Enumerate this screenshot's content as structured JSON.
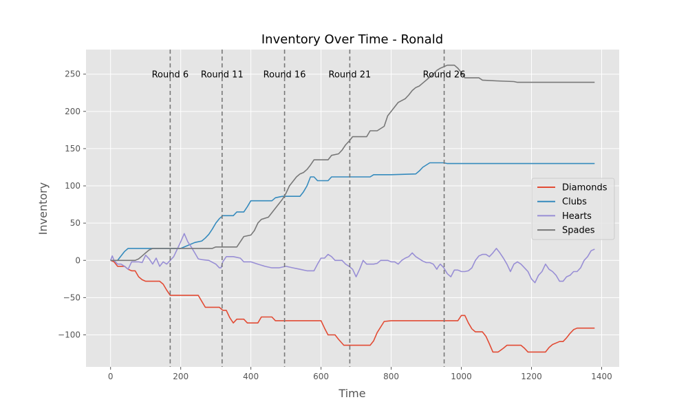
{
  "chart_data": {
    "type": "line",
    "title": "Inventory Over Time - Ronald",
    "xlabel": "Time",
    "ylabel": "Inventory",
    "xlim": [
      -70,
      1450
    ],
    "ylim": [
      -143,
      283
    ],
    "xticks": [
      0,
      200,
      400,
      600,
      800,
      1000,
      1200,
      1400
    ],
    "yticks": [
      -100,
      -50,
      0,
      50,
      100,
      150,
      200,
      250
    ],
    "grid": true,
    "legend_position": "center-right",
    "vlines": [
      {
        "x": 170,
        "label": "Round 6"
      },
      {
        "x": 318,
        "label": "Round 11"
      },
      {
        "x": 496,
        "label": "Round 16"
      },
      {
        "x": 682,
        "label": "Round 21"
      },
      {
        "x": 951,
        "label": "Round 26"
      }
    ],
    "series": [
      {
        "name": "Diamonds",
        "color": "#e24a33",
        "points": [
          [
            0,
            0
          ],
          [
            10,
            -2
          ],
          [
            20,
            -8
          ],
          [
            40,
            -8
          ],
          [
            50,
            -12
          ],
          [
            60,
            -14
          ],
          [
            70,
            -14
          ],
          [
            80,
            -22
          ],
          [
            90,
            -26
          ],
          [
            100,
            -28
          ],
          [
            140,
            -28
          ],
          [
            150,
            -32
          ],
          [
            160,
            -40
          ],
          [
            170,
            -47
          ],
          [
            250,
            -47
          ],
          [
            260,
            -55
          ],
          [
            270,
            -63
          ],
          [
            310,
            -63
          ],
          [
            320,
            -67
          ],
          [
            330,
            -67
          ],
          [
            340,
            -77
          ],
          [
            350,
            -84
          ],
          [
            360,
            -79
          ],
          [
            380,
            -79
          ],
          [
            390,
            -84
          ],
          [
            420,
            -84
          ],
          [
            430,
            -76
          ],
          [
            460,
            -76
          ],
          [
            470,
            -81
          ],
          [
            500,
            -81
          ],
          [
            600,
            -81
          ],
          [
            610,
            -91
          ],
          [
            620,
            -100
          ],
          [
            640,
            -100
          ],
          [
            650,
            -106
          ],
          [
            665,
            -114
          ],
          [
            740,
            -114
          ],
          [
            750,
            -108
          ],
          [
            760,
            -97
          ],
          [
            780,
            -82
          ],
          [
            800,
            -81
          ],
          [
            990,
            -81
          ],
          [
            1000,
            -74
          ],
          [
            1010,
            -74
          ],
          [
            1020,
            -84
          ],
          [
            1030,
            -92
          ],
          [
            1040,
            -96
          ],
          [
            1060,
            -96
          ],
          [
            1070,
            -102
          ],
          [
            1080,
            -112
          ],
          [
            1090,
            -123
          ],
          [
            1105,
            -123
          ],
          [
            1120,
            -118
          ],
          [
            1130,
            -114
          ],
          [
            1170,
            -114
          ],
          [
            1180,
            -118
          ],
          [
            1190,
            -123
          ],
          [
            1240,
            -123
          ],
          [
            1250,
            -117
          ],
          [
            1260,
            -113
          ],
          [
            1280,
            -109
          ],
          [
            1290,
            -109
          ],
          [
            1300,
            -104
          ],
          [
            1310,
            -98
          ],
          [
            1320,
            -93
          ],
          [
            1330,
            -91
          ],
          [
            1380,
            -91
          ]
        ]
      },
      {
        "name": "Clubs",
        "color": "#348abd",
        "points": [
          [
            0,
            0
          ],
          [
            20,
            0
          ],
          [
            30,
            6
          ],
          [
            40,
            12
          ],
          [
            50,
            16
          ],
          [
            180,
            16
          ],
          [
            200,
            16
          ],
          [
            220,
            20
          ],
          [
            240,
            24
          ],
          [
            260,
            26
          ],
          [
            270,
            30
          ],
          [
            280,
            35
          ],
          [
            290,
            42
          ],
          [
            300,
            50
          ],
          [
            310,
            56
          ],
          [
            320,
            60
          ],
          [
            350,
            60
          ],
          [
            360,
            65
          ],
          [
            380,
            65
          ],
          [
            390,
            72
          ],
          [
            400,
            80
          ],
          [
            460,
            80
          ],
          [
            470,
            84
          ],
          [
            490,
            86
          ],
          [
            540,
            86
          ],
          [
            550,
            92
          ],
          [
            560,
            100
          ],
          [
            570,
            112
          ],
          [
            580,
            112
          ],
          [
            590,
            107
          ],
          [
            620,
            107
          ],
          [
            630,
            112
          ],
          [
            700,
            112
          ],
          [
            740,
            112
          ],
          [
            750,
            115
          ],
          [
            800,
            115
          ],
          [
            870,
            116
          ],
          [
            880,
            120
          ],
          [
            890,
            125
          ],
          [
            910,
            131
          ],
          [
            950,
            131
          ],
          [
            960,
            130
          ],
          [
            1380,
            130
          ]
        ]
      },
      {
        "name": "Hearts",
        "color": "#988ed5",
        "points": [
          [
            0,
            0
          ],
          [
            5,
            6
          ],
          [
            10,
            0
          ],
          [
            20,
            -5
          ],
          [
            30,
            -5
          ],
          [
            40,
            -8
          ],
          [
            50,
            -12
          ],
          [
            60,
            -2
          ],
          [
            70,
            -2
          ],
          [
            80,
            -2
          ],
          [
            90,
            -3
          ],
          [
            100,
            7
          ],
          [
            110,
            2
          ],
          [
            120,
            -5
          ],
          [
            130,
            3
          ],
          [
            140,
            -8
          ],
          [
            150,
            -2
          ],
          [
            160,
            -5
          ],
          [
            170,
            0
          ],
          [
            180,
            5
          ],
          [
            190,
            15
          ],
          [
            200,
            25
          ],
          [
            210,
            36
          ],
          [
            220,
            25
          ],
          [
            230,
            18
          ],
          [
            240,
            10
          ],
          [
            250,
            2
          ],
          [
            260,
            1
          ],
          [
            280,
            0
          ],
          [
            300,
            -5
          ],
          [
            310,
            -10
          ],
          [
            315,
            -10
          ],
          [
            320,
            -2
          ],
          [
            330,
            5
          ],
          [
            350,
            5
          ],
          [
            370,
            3
          ],
          [
            380,
            -2
          ],
          [
            400,
            -2
          ],
          [
            420,
            -5
          ],
          [
            440,
            -8
          ],
          [
            460,
            -10
          ],
          [
            480,
            -10
          ],
          [
            500,
            -8
          ],
          [
            520,
            -10
          ],
          [
            540,
            -12
          ],
          [
            560,
            -14
          ],
          [
            580,
            -14
          ],
          [
            590,
            -5
          ],
          [
            600,
            3
          ],
          [
            610,
            3
          ],
          [
            620,
            8
          ],
          [
            630,
            5
          ],
          [
            640,
            0
          ],
          [
            660,
            0
          ],
          [
            670,
            -5
          ],
          [
            680,
            -8
          ],
          [
            690,
            -12
          ],
          [
            700,
            -22
          ],
          [
            710,
            -12
          ],
          [
            720,
            0
          ],
          [
            730,
            -5
          ],
          [
            740,
            -5
          ],
          [
            750,
            -5
          ],
          [
            760,
            -4
          ],
          [
            770,
            0
          ],
          [
            790,
            0
          ],
          [
            800,
            -2
          ],
          [
            810,
            -2
          ],
          [
            820,
            -5
          ],
          [
            830,
            0
          ],
          [
            840,
            3
          ],
          [
            850,
            5
          ],
          [
            860,
            10
          ],
          [
            870,
            5
          ],
          [
            880,
            2
          ],
          [
            890,
            -1
          ],
          [
            900,
            -3
          ],
          [
            910,
            -3
          ],
          [
            920,
            -5
          ],
          [
            930,
            -12
          ],
          [
            935,
            -8
          ],
          [
            940,
            -5
          ],
          [
            950,
            -10
          ],
          [
            960,
            -18
          ],
          [
            970,
            -22
          ],
          [
            980,
            -13
          ],
          [
            990,
            -13
          ],
          [
            1000,
            -15
          ],
          [
            1010,
            -15
          ],
          [
            1020,
            -14
          ],
          [
            1030,
            -10
          ],
          [
            1040,
            0
          ],
          [
            1050,
            6
          ],
          [
            1060,
            8
          ],
          [
            1070,
            8
          ],
          [
            1080,
            5
          ],
          [
            1090,
            10
          ],
          [
            1100,
            16
          ],
          [
            1110,
            10
          ],
          [
            1120,
            3
          ],
          [
            1130,
            -5
          ],
          [
            1140,
            -15
          ],
          [
            1150,
            -5
          ],
          [
            1160,
            -2
          ],
          [
            1170,
            -5
          ],
          [
            1180,
            -10
          ],
          [
            1190,
            -15
          ],
          [
            1200,
            -25
          ],
          [
            1210,
            -30
          ],
          [
            1220,
            -20
          ],
          [
            1230,
            -15
          ],
          [
            1240,
            -5
          ],
          [
            1250,
            -12
          ],
          [
            1260,
            -15
          ],
          [
            1270,
            -20
          ],
          [
            1280,
            -28
          ],
          [
            1290,
            -28
          ],
          [
            1300,
            -22
          ],
          [
            1310,
            -20
          ],
          [
            1320,
            -15
          ],
          [
            1330,
            -15
          ],
          [
            1340,
            -10
          ],
          [
            1350,
            0
          ],
          [
            1360,
            5
          ],
          [
            1370,
            13
          ],
          [
            1380,
            15
          ]
        ]
      },
      {
        "name": "Spades",
        "color": "#777777",
        "points": [
          [
            0,
            0
          ],
          [
            20,
            0
          ],
          [
            70,
            0
          ],
          [
            80,
            2
          ],
          [
            90,
            6
          ],
          [
            100,
            10
          ],
          [
            110,
            14
          ],
          [
            120,
            16
          ],
          [
            280,
            16
          ],
          [
            290,
            16
          ],
          [
            300,
            18
          ],
          [
            360,
            18
          ],
          [
            370,
            25
          ],
          [
            380,
            32
          ],
          [
            400,
            34
          ],
          [
            410,
            40
          ],
          [
            420,
            50
          ],
          [
            430,
            55
          ],
          [
            450,
            58
          ],
          [
            460,
            64
          ],
          [
            470,
            70
          ],
          [
            480,
            76
          ],
          [
            490,
            82
          ],
          [
            500,
            90
          ],
          [
            510,
            100
          ],
          [
            520,
            106
          ],
          [
            530,
            112
          ],
          [
            540,
            116
          ],
          [
            550,
            118
          ],
          [
            560,
            122
          ],
          [
            570,
            128
          ],
          [
            580,
            135
          ],
          [
            590,
            135
          ],
          [
            620,
            135
          ],
          [
            630,
            141
          ],
          [
            650,
            143
          ],
          [
            660,
            148
          ],
          [
            670,
            155
          ],
          [
            680,
            160
          ],
          [
            690,
            166
          ],
          [
            720,
            166
          ],
          [
            730,
            166
          ],
          [
            740,
            174
          ],
          [
            760,
            174
          ],
          [
            780,
            180
          ],
          [
            790,
            194
          ],
          [
            800,
            200
          ],
          [
            810,
            206
          ],
          [
            820,
            212
          ],
          [
            840,
            217
          ],
          [
            850,
            222
          ],
          [
            860,
            228
          ],
          [
            870,
            232
          ],
          [
            880,
            234
          ],
          [
            890,
            238
          ],
          [
            900,
            242
          ],
          [
            910,
            246
          ],
          [
            920,
            250
          ],
          [
            930,
            255
          ],
          [
            940,
            258
          ],
          [
            960,
            262
          ],
          [
            970,
            262
          ],
          [
            980,
            262
          ],
          [
            990,
            258
          ],
          [
            1000,
            252
          ],
          [
            1010,
            245
          ],
          [
            1050,
            245
          ],
          [
            1060,
            242
          ],
          [
            1100,
            241
          ],
          [
            1150,
            240
          ],
          [
            1160,
            239
          ],
          [
            1200,
            239
          ],
          [
            1300,
            239
          ],
          [
            1380,
            239
          ]
        ]
      }
    ]
  }
}
